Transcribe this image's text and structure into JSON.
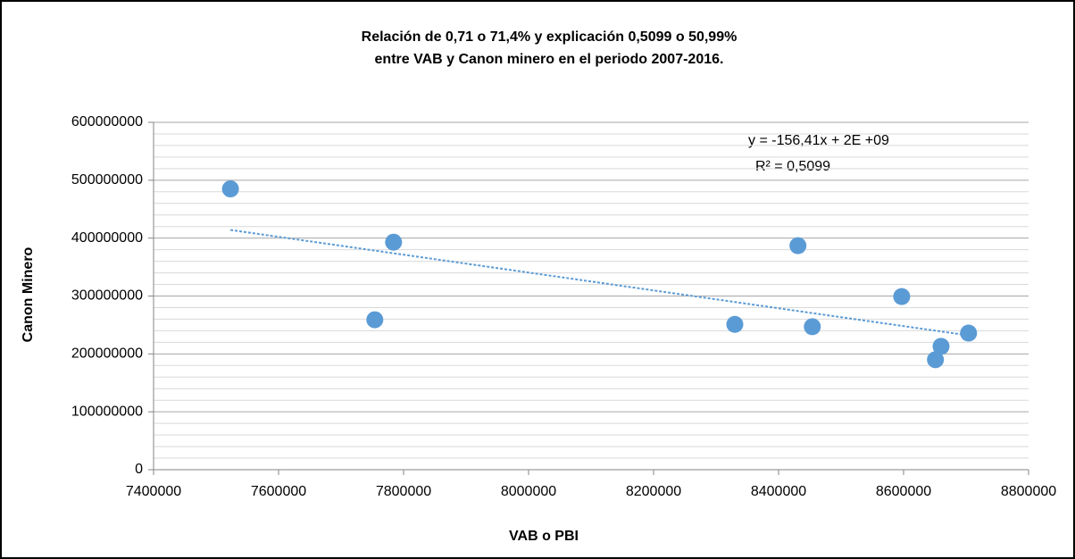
{
  "chart_data": {
    "type": "scatter",
    "title": "Relación de 0,71 o 71,4% y explicación 0,5099 o 50,99%",
    "subtitle": "entre VAB y Canon minero en el periodo 2007-2016.",
    "x_label": "VAB o PBI",
    "y_label": "Canon Minero",
    "equation": "y = -156,41x + 2E +09",
    "r_squared": "R² = 0,5099",
    "x": [
      7523000,
      7784000,
      7754000,
      8330000,
      8431000,
      8454000,
      8597000,
      8651000,
      8660000,
      8704000
    ],
    "y": [
      485000000,
      393000000,
      259000000,
      251000000,
      387000000,
      247000000,
      299000000,
      190000000,
      213000000,
      236000000
    ],
    "color": "#5b9bd5",
    "xlim": [
      7400000,
      8800000
    ],
    "xticks": [
      7400000,
      7600000,
      7800000,
      8000000,
      8200000,
      8400000,
      8600000,
      8800000
    ],
    "ylim": [
      0,
      600000000
    ],
    "yticks": [
      0,
      100000000,
      200000000,
      300000000,
      400000000,
      500000000,
      600000000
    ],
    "grid": true,
    "trendline": "linear"
  }
}
